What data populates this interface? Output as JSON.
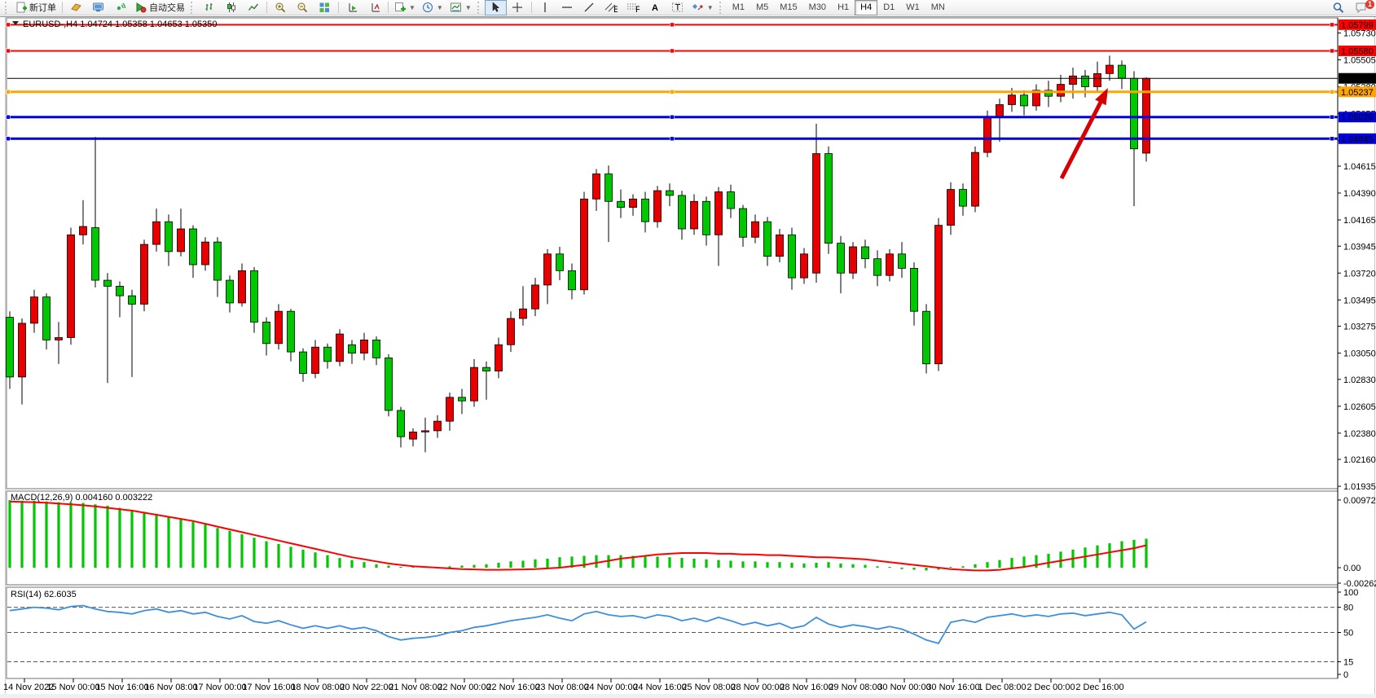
{
  "toolbar": {
    "new_order_label": "新订单",
    "auto_trading_label": "自动交易",
    "timeframes": [
      "M1",
      "M5",
      "M15",
      "M30",
      "H1",
      "H4",
      "D1",
      "W1",
      "MN"
    ],
    "active_timeframe": "H4",
    "chat_badge": "1",
    "icons": [
      "new-order",
      "history-gold",
      "terminal",
      "signal",
      "auto-trading",
      "bar-chart",
      "candlestick-chart",
      "line-chart",
      "zoom-in",
      "zoom-out",
      "tile-windows",
      "arrange-charts",
      "arrange-cascade",
      "add-indicator",
      "period-clock",
      "template",
      "cursor",
      "crosshair",
      "vertical-line",
      "horizontal-line",
      "trendline",
      "equidistant-channel",
      "fibonacci",
      "text",
      "text-label",
      "shapes",
      "search",
      "chat"
    ]
  },
  "chart_data": [
    {
      "id": "price-panel",
      "type": "candlestick",
      "symbol": "EURUSD-",
      "period": "H4",
      "header": "EURUSD-,H4  1.04724 1.05358 1.04653 1.05350",
      "last_candle": {
        "open": 1.04724,
        "high": 1.05358,
        "low": 1.04653,
        "close": 1.0535
      },
      "up_color": "#E80000",
      "down_color": "#00C800",
      "outline_color": "#000000",
      "ylim": [
        1.01915,
        1.05856
      ],
      "y_ticks": [
        "1.05730",
        "1.05505",
        "1.05280",
        "1.05055",
        "1.04830",
        "1.04615",
        "1.04390",
        "1.04165",
        "1.03945",
        "1.03720",
        "1.03495",
        "1.03275",
        "1.03050",
        "1.02830",
        "1.02605",
        "1.02380",
        "1.02160",
        "1.01935"
      ],
      "price_lines": [
        {
          "label": "1.05799",
          "price": 1.05799,
          "color": "#FF0000",
          "width": 2,
          "handles": true
        },
        {
          "label": "1.05580",
          "price": 1.0558,
          "color": "#FF0000",
          "width": 2,
          "handles": true
        },
        {
          "label": "1.05350",
          "price": 1.0535,
          "color": "#000000",
          "width": 1,
          "handles": false,
          "role": "current-price"
        },
        {
          "label": "1.05237",
          "price": 1.05237,
          "color": "#FFA500",
          "width": 3,
          "handles": true
        },
        {
          "label": "1.05026",
          "price": 1.05026,
          "color": "#0000E0",
          "width": 3,
          "handles": true
        },
        {
          "label": "1.04845",
          "price": 1.04845,
          "color": "#0000E0",
          "width": 3,
          "handles": true
        }
      ],
      "x_labels": [
        "14 Nov 2022",
        "15 Nov 00:00",
        "15 Nov 16:00",
        "16 Nov 08:00",
        "17 Nov 00:00",
        "17 Nov 16:00",
        "18 Nov 08:00",
        "20 Nov 22:00",
        "21 Nov 08:00",
        "22 Nov 00:00",
        "22 Nov 16:00",
        "23 Nov 08:00",
        "24 Nov 00:00",
        "24 Nov 16:00",
        "25 Nov 08:00",
        "28 Nov 00:00",
        "28 Nov 16:00",
        "29 Nov 08:00",
        "30 Nov 00:00",
        "30 Nov 16:00",
        "1 Dec 08:00",
        "2 Dec 00:00",
        "2 Dec 16:00"
      ],
      "candles": [
        [
          1.0335,
          1.034,
          1.0275,
          1.0285
        ],
        [
          1.0285,
          1.0334,
          1.0262,
          1.033
        ],
        [
          1.033,
          1.0358,
          1.0322,
          1.0352
        ],
        [
          1.0352,
          1.0355,
          1.0308,
          1.0316
        ],
        [
          1.0316,
          1.0331,
          1.0296,
          1.0318
        ],
        [
          1.0318,
          1.041,
          1.0312,
          1.0404
        ],
        [
          1.0404,
          1.0433,
          1.0396,
          1.0411
        ],
        [
          1.041,
          1.0486,
          1.036,
          1.0366
        ],
        [
          1.0366,
          1.0372,
          1.028,
          1.0361
        ],
        [
          1.0361,
          1.0365,
          1.0335,
          1.0353
        ],
        [
          1.0353,
          1.0358,
          1.0285,
          1.0346
        ],
        [
          1.0346,
          1.04,
          1.034,
          1.0396
        ],
        [
          1.0396,
          1.0426,
          1.039,
          1.0415
        ],
        [
          1.0415,
          1.0421,
          1.0378,
          1.039
        ],
        [
          1.039,
          1.0426,
          1.0386,
          1.0409
        ],
        [
          1.0409,
          1.0412,
          1.0368,
          1.0379
        ],
        [
          1.0379,
          1.0402,
          1.0374,
          1.0398
        ],
        [
          1.0398,
          1.0402,
          1.0352,
          1.0366
        ],
        [
          1.0366,
          1.037,
          1.0339,
          1.0347
        ],
        [
          1.0347,
          1.038,
          1.0344,
          1.0374
        ],
        [
          1.0374,
          1.0377,
          1.0322,
          1.0331
        ],
        [
          1.0331,
          1.0335,
          1.0303,
          1.0313
        ],
        [
          1.0313,
          1.0346,
          1.0308,
          1.034
        ],
        [
          1.034,
          1.0342,
          1.0298,
          1.0306
        ],
        [
          1.0306,
          1.0309,
          1.0281,
          1.0288
        ],
        [
          1.0288,
          1.0316,
          1.0284,
          1.031
        ],
        [
          1.031,
          1.0313,
          1.0292,
          1.0298
        ],
        [
          1.0298,
          1.0325,
          1.0294,
          1.0321
        ],
        [
          1.0312,
          1.0316,
          1.0296,
          1.0305
        ],
        [
          1.0305,
          1.0322,
          1.0299,
          1.0316
        ],
        [
          1.0316,
          1.0319,
          1.0295,
          1.0301
        ],
        [
          1.0301,
          1.0304,
          1.0252,
          1.0257
        ],
        [
          1.0257,
          1.026,
          1.0226,
          1.0235
        ],
        [
          1.0233,
          1.0242,
          1.0227,
          1.0239
        ],
        [
          1.0239,
          1.0251,
          1.0222,
          1.024
        ],
        [
          1.024,
          1.0253,
          1.0234,
          1.0248
        ],
        [
          1.0248,
          1.0272,
          1.024,
          1.0268
        ],
        [
          1.0268,
          1.0275,
          1.0254,
          1.0265
        ],
        [
          1.0265,
          1.03,
          1.026,
          1.0293
        ],
        [
          1.0293,
          1.0298,
          1.0266,
          1.029
        ],
        [
          1.029,
          1.0318,
          1.0284,
          1.0312
        ],
        [
          1.0312,
          1.034,
          1.0306,
          1.0334
        ],
        [
          1.0334,
          1.0361,
          1.0328,
          1.0342
        ],
        [
          1.0342,
          1.0368,
          1.0336,
          1.0362
        ],
        [
          1.0362,
          1.0392,
          1.0346,
          1.0388
        ],
        [
          1.0388,
          1.0394,
          1.0366,
          1.0374
        ],
        [
          1.0374,
          1.038,
          1.035,
          1.0358
        ],
        [
          1.0358,
          1.044,
          1.0354,
          1.0434
        ],
        [
          1.0434,
          1.0459,
          1.0424,
          1.0455
        ],
        [
          1.0455,
          1.0462,
          1.0398,
          1.0432
        ],
        [
          1.0432,
          1.0442,
          1.0418,
          1.0427
        ],
        [
          1.0427,
          1.0438,
          1.042,
          1.0434
        ],
        [
          1.0434,
          1.044,
          1.0406,
          1.0415
        ],
        [
          1.0415,
          1.0445,
          1.041,
          1.0441
        ],
        [
          1.0441,
          1.0447,
          1.0428,
          1.0437
        ],
        [
          1.0437,
          1.0441,
          1.04,
          1.0409
        ],
        [
          1.0409,
          1.0438,
          1.0404,
          1.0432
        ],
        [
          1.0432,
          1.0436,
          1.0395,
          1.0404
        ],
        [
          1.0404,
          1.0444,
          1.0378,
          1.044
        ],
        [
          1.044,
          1.0446,
          1.0418,
          1.0426
        ],
        [
          1.0426,
          1.0429,
          1.0394,
          1.0402
        ],
        [
          1.0402,
          1.0421,
          1.0397,
          1.0415
        ],
        [
          1.0415,
          1.0419,
          1.0378,
          1.0386
        ],
        [
          1.0386,
          1.0409,
          1.0381,
          1.0404
        ],
        [
          1.0404,
          1.041,
          1.0358,
          1.0368
        ],
        [
          1.0368,
          1.0393,
          1.0363,
          1.0388
        ],
        [
          1.0372,
          1.0497,
          1.0364,
          1.0472
        ],
        [
          1.0472,
          1.0478,
          1.0388,
          1.0397
        ],
        [
          1.0397,
          1.0403,
          1.0355,
          1.0372
        ],
        [
          1.0372,
          1.0398,
          1.0367,
          1.0394
        ],
        [
          1.0394,
          1.04,
          1.0376,
          1.0384
        ],
        [
          1.0384,
          1.0391,
          1.0361,
          1.037
        ],
        [
          1.037,
          1.0392,
          1.0365,
          1.0388
        ],
        [
          1.0388,
          1.0398,
          1.0368,
          1.0376
        ],
        [
          1.0376,
          1.0381,
          1.0328,
          1.034
        ],
        [
          1.034,
          1.0346,
          1.0288,
          1.0296
        ],
        [
          1.0296,
          1.0418,
          1.029,
          1.0412
        ],
        [
          1.0412,
          1.0448,
          1.0404,
          1.0442
        ],
        [
          1.0442,
          1.0447,
          1.042,
          1.0428
        ],
        [
          1.0428,
          1.0478,
          1.0423,
          1.0473
        ],
        [
          1.0473,
          1.0508,
          1.0469,
          1.0503
        ],
        [
          1.0503,
          1.0518,
          1.0482,
          1.0513
        ],
        [
          1.0513,
          1.0527,
          1.0507,
          1.0521
        ],
        [
          1.0521,
          1.0525,
          1.0504,
          1.0512
        ],
        [
          1.0512,
          1.053,
          1.0508,
          1.0525
        ],
        [
          1.0525,
          1.0533,
          1.0511,
          1.052
        ],
        [
          1.052,
          1.0538,
          1.0515,
          1.053
        ],
        [
          1.053,
          1.0544,
          1.0518,
          1.0537
        ],
        [
          1.0537,
          1.0542,
          1.0519,
          1.0528
        ],
        [
          1.0528,
          1.0549,
          1.0523,
          1.0539
        ],
        [
          1.0539,
          1.0554,
          1.0533,
          1.0546
        ],
        [
          1.0546,
          1.055,
          1.0526,
          1.0535
        ],
        [
          1.0535,
          1.0541,
          1.0428,
          1.0476
        ],
        [
          1.04724,
          1.05358,
          1.04653,
          1.0535
        ]
      ],
      "annotation_arrow": {
        "color": "#D60000",
        "from": [
          1303,
          219
        ],
        "to": [
          1360,
          108
        ]
      }
    },
    {
      "id": "macd-panel",
      "type": "histogram+line",
      "title": "MACD(12,26,9)",
      "value_main": "0.004160",
      "value_signal": "0.003222",
      "histogram_color": "#00C800",
      "signal_color": "#FF0000",
      "y_ticks": [
        {
          "v": 0.00972,
          "label": "0.00972"
        },
        {
          "v": 0,
          "label": "0.00"
        },
        {
          "v": -0.00262,
          "label": "-0.00262"
        }
      ],
      "histogram": [
        0.0097,
        0.0096,
        0.0096,
        0.0095,
        0.0094,
        0.0094,
        0.0093,
        0.0091,
        0.0089,
        0.0086,
        0.0083,
        0.008,
        0.0077,
        0.0074,
        0.007,
        0.0066,
        0.0062,
        0.0057,
        0.0053,
        0.0048,
        0.0043,
        0.0038,
        0.0034,
        0.003,
        0.0026,
        0.0022,
        0.0018,
        0.0014,
        0.0011,
        0.0008,
        0.0005,
        0.0003,
        0.0001,
        0.0,
        0.0,
        0.0001,
        0.0002,
        0.0003,
        0.0004,
        0.0005,
        0.0007,
        0.0009,
        0.001,
        0.0012,
        0.0013,
        0.0015,
        0.0016,
        0.0017,
        0.0018,
        0.0018,
        0.0018,
        0.0017,
        0.0016,
        0.0016,
        0.0015,
        0.0014,
        0.0013,
        0.0012,
        0.0011,
        0.001,
        0.0009,
        0.0009,
        0.0008,
        0.0008,
        0.0007,
        0.0006,
        0.0007,
        0.0008,
        0.0006,
        0.0005,
        0.0004,
        0.0002,
        0.0,
        -0.0002,
        -0.0003,
        -0.0004,
        -0.0003,
        -0.0001,
        0.0002,
        0.0005,
        0.0008,
        0.0011,
        0.0014,
        0.0016,
        0.0018,
        0.002,
        0.0023,
        0.0026,
        0.0029,
        0.0032,
        0.0035,
        0.0038,
        0.004,
        0.00416
      ],
      "signal": [
        0.0095,
        0.00945,
        0.0094,
        0.00932,
        0.00922,
        0.0091,
        0.00896,
        0.0088,
        0.0086,
        0.0084,
        0.0082,
        0.0079,
        0.0076,
        0.0073,
        0.007,
        0.0067,
        0.0063,
        0.0059,
        0.0055,
        0.0051,
        0.0047,
        0.0043,
        0.0039,
        0.0035,
        0.0031,
        0.0027,
        0.0023,
        0.0019,
        0.0015,
        0.0012,
        0.0009,
        0.0006,
        0.0004,
        0.0002,
        0.0001,
        0.0,
        -0.0001,
        -0.0002,
        -0.00025,
        -0.0003,
        -0.0003,
        -0.00028,
        -0.00024,
        -0.0002,
        -0.0001,
        0.0,
        0.0002,
        0.0004,
        0.0007,
        0.001,
        0.0013,
        0.0015,
        0.0017,
        0.0019,
        0.002,
        0.0021,
        0.0021,
        0.0021,
        0.002,
        0.002,
        0.0019,
        0.0019,
        0.0018,
        0.0018,
        0.0017,
        0.0016,
        0.0015,
        0.0015,
        0.0014,
        0.0013,
        0.0012,
        0.001,
        0.0008,
        0.0006,
        0.0004,
        0.0002,
        0.0,
        -0.0002,
        -0.0003,
        -0.0004,
        -0.0004,
        -0.0003,
        -0.0001,
        0.0001,
        0.0004,
        0.0007,
        0.001,
        0.0013,
        0.0016,
        0.0019,
        0.0022,
        0.0025,
        0.0028,
        0.00322
      ]
    },
    {
      "id": "rsi-panel",
      "type": "line",
      "title": "RSI(14)",
      "value": "62.6035",
      "line_color": "#3E8EDE",
      "levels": [
        80,
        50,
        15
      ],
      "y_ticks": [
        {
          "v": 100,
          "label": "100"
        },
        {
          "v": 80,
          "label": "80"
        },
        {
          "v": 50,
          "label": "50"
        },
        {
          "v": 15,
          "label": "15"
        },
        {
          "v": 0,
          "label": "0"
        }
      ],
      "values": [
        76,
        78,
        80,
        79,
        77,
        81,
        82,
        78,
        75,
        74,
        72,
        76,
        78,
        74,
        76,
        72,
        74,
        69,
        66,
        70,
        63,
        61,
        64,
        59,
        55,
        58,
        55,
        58,
        54,
        56,
        52,
        45,
        41,
        43,
        44,
        46,
        50,
        52,
        56,
        58,
        61,
        64,
        66,
        68,
        71,
        67,
        64,
        72,
        75,
        71,
        69,
        70,
        67,
        71,
        69,
        64,
        67,
        63,
        68,
        64,
        59,
        62,
        58,
        61,
        55,
        58,
        68,
        60,
        56,
        59,
        57,
        54,
        57,
        54,
        48,
        41,
        37,
        62,
        65,
        62,
        68,
        70,
        72,
        69,
        71,
        69,
        72,
        73,
        70,
        72,
        74,
        71,
        54,
        62.6
      ]
    }
  ]
}
